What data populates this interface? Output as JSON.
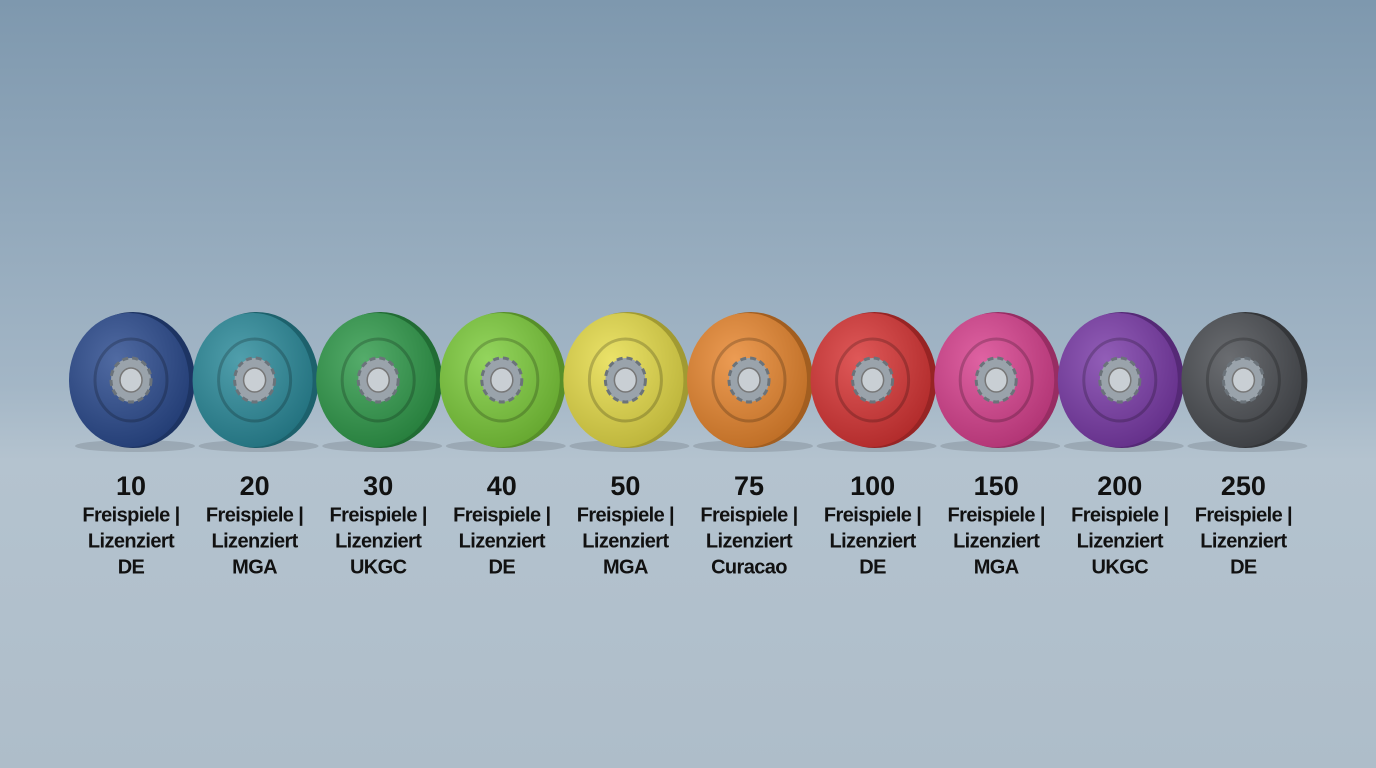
{
  "items": [
    {
      "amount": 10,
      "line1": "Freispiele |",
      "line2": "Lizenziert",
      "line3": "DE",
      "color": "#2a4a8e"
    },
    {
      "amount": 20,
      "line1": "Freispiele |",
      "line2": "Lizenziert",
      "line3": "MGA",
      "color": "#2a8a9a"
    },
    {
      "amount": 30,
      "line1": "Freispiele |",
      "line2": "Lizenziert",
      "line3": "UKGC",
      "color": "#2f9a4a"
    },
    {
      "amount": 40,
      "line1": "Freispiele |",
      "line2": "Lizenziert",
      "line3": "DE",
      "color": "#7ccc3a"
    },
    {
      "amount": 50,
      "line1": "Freispiele |",
      "line2": "Lizenziert",
      "line3": "MGA",
      "color": "#e6dc48"
    },
    {
      "amount": 75,
      "line1": "Freispiele |",
      "line2": "Lizenziert",
      "line3": "Curacao",
      "color": "#e8862e"
    },
    {
      "amount": 100,
      "line1": "Freispiele |",
      "line2": "Lizenziert",
      "line3": "DE",
      "color": "#d83434"
    },
    {
      "amount": 150,
      "line1": "Freispiele |",
      "line2": "Lizenziert",
      "line3": "MGA",
      "color": "#d8408e"
    },
    {
      "amount": 200,
      "line1": "Freispiele |",
      "line2": "Lizenziert",
      "line3": "UKGC",
      "color": "#7a3aa8"
    },
    {
      "amount": 250,
      "line1": "Freispiele |",
      "line2": "Lizenziert",
      "line3": "DE",
      "color": "#4a4d52"
    }
  ]
}
